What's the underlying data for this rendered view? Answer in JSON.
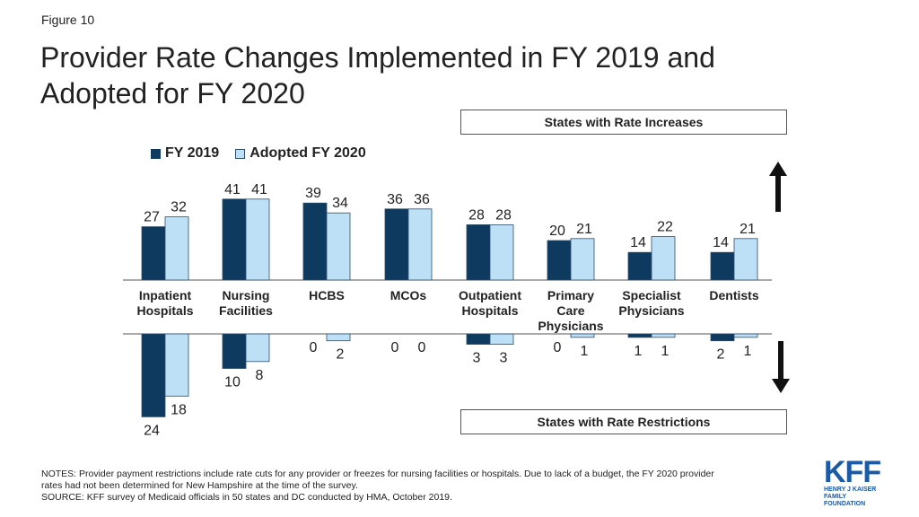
{
  "header": {
    "figure_label": "Figure 10",
    "title": "Provider Rate Changes Implemented in FY 2019 and Adopted for FY 2020"
  },
  "boxes": {
    "top": "States with Rate Increases",
    "bottom": "States with Rate Restrictions"
  },
  "colors": {
    "fy2019": "#0d3a5e",
    "fy2020": "#bde0f7",
    "fy2020_border": "#2e4d6b"
  },
  "arrows": {
    "up_icon": "arrow-up-icon",
    "down_icon": "arrow-down-icon"
  },
  "chart_data": {
    "type": "bar",
    "categories": [
      [
        "Inpatient",
        "Hospitals"
      ],
      [
        "Nursing",
        "Facilities"
      ],
      [
        "HCBS"
      ],
      [
        "MCOs"
      ],
      [
        "Outpatient",
        "Hospitals"
      ],
      [
        "Primary",
        "Care",
        "Physicians"
      ],
      [
        "Specialist",
        "Physicians"
      ],
      [
        "Dentists"
      ]
    ],
    "legend": [
      "FY 2019",
      "Adopted FY 2020"
    ],
    "series_increases": [
      {
        "name": "FY 2019",
        "values": [
          27,
          41,
          39,
          36,
          28,
          20,
          14,
          14
        ]
      },
      {
        "name": "Adopted FY 2020",
        "values": [
          32,
          41,
          34,
          36,
          28,
          21,
          22,
          21
        ]
      }
    ],
    "series_restrictions": [
      {
        "name": "FY 2019",
        "values": [
          24,
          10,
          0,
          0,
          3,
          0,
          1,
          2
        ]
      },
      {
        "name": "Adopted FY 2020",
        "values": [
          18,
          8,
          2,
          0,
          3,
          1,
          1,
          1
        ]
      }
    ]
  },
  "notes": {
    "line1": "NOTES: Provider payment restrictions include rate cuts for any provider or freezes for nursing facilities or hospitals.  Due to lack of a budget, the FY 2020 provider",
    "line2": "rates had not been determined for New Hampshire at the time of the survey.",
    "line3": "SOURCE: KFF survey of Medicaid officials in 50 states and DC conducted by HMA, October 2019."
  },
  "logo": {
    "mark": "KFF",
    "sub1": "HENRY J KAISER",
    "sub2": "FAMILY FOUNDATION"
  }
}
